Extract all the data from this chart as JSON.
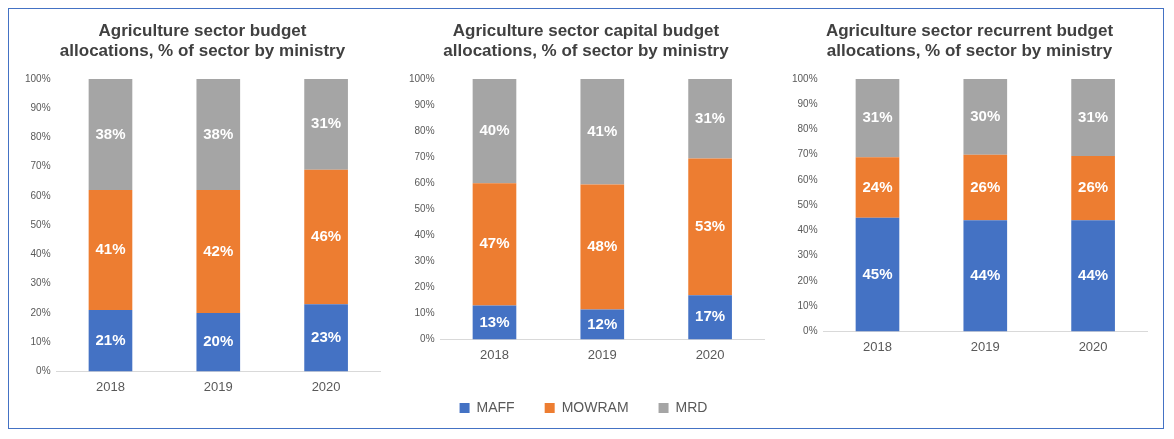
{
  "chart_data": [
    {
      "type": "bar",
      "title": "Agriculture sector budget allocations, % of sector by ministry",
      "categories": [
        "2018",
        "2019",
        "2020"
      ],
      "stacked": true,
      "ylim": [
        0,
        100
      ],
      "yticks": [
        {
          "value": 0,
          "label": "0%"
        },
        {
          "value": 10,
          "label": "10%"
        },
        {
          "value": 20,
          "label": "20%"
        },
        {
          "value": 30,
          "label": "30%"
        },
        {
          "value": 40,
          "label": "40%"
        },
        {
          "value": 50,
          "label": "50%"
        },
        {
          "value": 60,
          "label": "60%"
        },
        {
          "value": 70,
          "label": "70%"
        },
        {
          "value": 80,
          "label": "80%"
        },
        {
          "value": 90,
          "label": "90%"
        },
        {
          "value": 100,
          "label": "100%"
        }
      ],
      "grid": false,
      "legend": false,
      "series": [
        {
          "color": "#4472c4",
          "values": [
            21,
            20,
            23
          ],
          "value_labels": [
            "21%",
            "20%",
            "23%"
          ]
        },
        {
          "color": "#ed7d31",
          "values": [
            41,
            42,
            46
          ],
          "value_labels": [
            "41%",
            "42%",
            "46%"
          ]
        },
        {
          "color": "#a5a5a5",
          "values": [
            38,
            38,
            31
          ],
          "value_labels": [
            "38%",
            "38%",
            "31%"
          ]
        }
      ]
    },
    {
      "type": "bar",
      "title": "Agriculture sector capital budget allocations, % of sector by ministry",
      "categories": [
        "2018",
        "2019",
        "2020"
      ],
      "stacked": true,
      "ylim": [
        0,
        100
      ],
      "yticks": [
        {
          "value": 0,
          "label": "0%"
        },
        {
          "value": 10,
          "label": "10%"
        },
        {
          "value": 20,
          "label": "20%"
        },
        {
          "value": 30,
          "label": "30%"
        },
        {
          "value": 40,
          "label": "40%"
        },
        {
          "value": 50,
          "label": "50%"
        },
        {
          "value": 60,
          "label": "60%"
        },
        {
          "value": 70,
          "label": "70%"
        },
        {
          "value": 80,
          "label": "80%"
        },
        {
          "value": 90,
          "label": "90%"
        },
        {
          "value": 100,
          "label": "100%"
        }
      ],
      "grid": false,
      "legend": "bottom",
      "series": [
        {
          "name": "MAFF",
          "color": "#4472c4",
          "values": [
            13,
            11.5,
            17
          ],
          "value_labels": [
            "13%",
            "12%",
            "17%"
          ]
        },
        {
          "name": "MOWRAM",
          "color": "#ed7d31",
          "values": [
            47,
            48,
            52.5
          ],
          "value_labels": [
            "47%",
            "48%",
            "53%"
          ]
        },
        {
          "name": "MRD",
          "color": "#a5a5a5",
          "values": [
            40,
            40.5,
            30.5
          ],
          "value_labels": [
            "40%",
            "41%",
            "31%"
          ]
        }
      ]
    },
    {
      "type": "bar",
      "title": "Agriculture sector recurrent budget allocations, % of sector by ministry",
      "categories": [
        "2018",
        "2019",
        "2020"
      ],
      "stacked": true,
      "ylim": [
        0,
        100
      ],
      "yticks": [
        {
          "value": 0,
          "label": "0%"
        },
        {
          "value": 10,
          "label": "10%"
        },
        {
          "value": 20,
          "label": "20%"
        },
        {
          "value": 30,
          "label": "30%"
        },
        {
          "value": 40,
          "label": "40%"
        },
        {
          "value": 50,
          "label": "50%"
        },
        {
          "value": 60,
          "label": "60%"
        },
        {
          "value": 70,
          "label": "70%"
        },
        {
          "value": 80,
          "label": "80%"
        },
        {
          "value": 90,
          "label": "90%"
        },
        {
          "value": 100,
          "label": "100%"
        }
      ],
      "grid": false,
      "legend": false,
      "series": [
        {
          "color": "#4472c4",
          "values": [
            45,
            44,
            44
          ],
          "value_labels": [
            "45%",
            "44%",
            "44%"
          ]
        },
        {
          "color": "#ed7d31",
          "values": [
            24,
            26,
            25.5
          ],
          "value_labels": [
            "24%",
            "26%",
            "26%"
          ]
        },
        {
          "color": "#a5a5a5",
          "values": [
            31,
            30,
            30.5
          ],
          "value_labels": [
            "31%",
            "30%",
            "31%"
          ]
        }
      ]
    }
  ]
}
